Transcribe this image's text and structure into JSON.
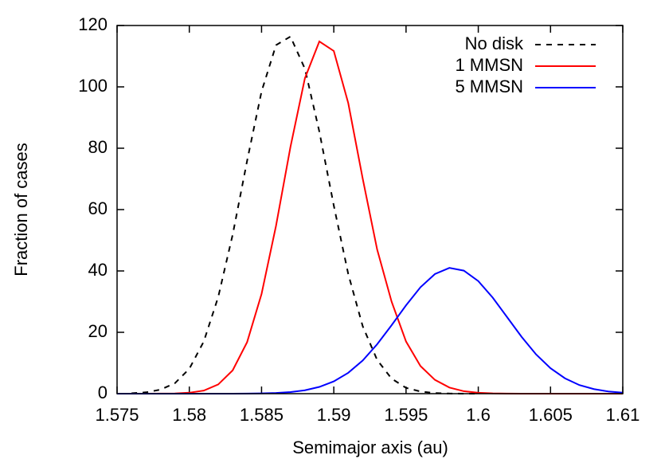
{
  "chart_data": {
    "type": "line",
    "x_label": "Semimajor axis (au)",
    "y_label": "Fraction of cases",
    "x": [
      1.575,
      1.576,
      1.577,
      1.578,
      1.579,
      1.58,
      1.581,
      1.582,
      1.583,
      1.584,
      1.585,
      1.586,
      1.587,
      1.588,
      1.589,
      1.59,
      1.591,
      1.592,
      1.593,
      1.594,
      1.595,
      1.596,
      1.597,
      1.598,
      1.599,
      1.6,
      1.601,
      1.602,
      1.603,
      1.604,
      1.605,
      1.606,
      1.607,
      1.608,
      1.609,
      1.61
    ],
    "series": [
      {
        "name": "No disk",
        "color": "#000000",
        "style": "dashed",
        "values": [
          null,
          0.13,
          0.44,
          1.3,
          3.4,
          8.1,
          17.0,
          31.5,
          51.8,
          75.9,
          98.5,
          113.6,
          116.4,
          105.9,
          85.4,
          61.3,
          39.0,
          22.0,
          11.0,
          4.9,
          1.9,
          0.7,
          0.2,
          0.05,
          0.01,
          0,
          null,
          null,
          null,
          null,
          null,
          null,
          null,
          null,
          null,
          null
        ]
      },
      {
        "name": "1 MMSN",
        "color": "#ff0000",
        "style": "solid",
        "values": [
          0,
          0,
          0,
          0.02,
          0.08,
          0.31,
          1.0,
          3.0,
          7.6,
          16.8,
          32.5,
          54.7,
          80.4,
          102.8,
          114.8,
          111.7,
          94.7,
          70.1,
          47.0,
          30.0,
          17.0,
          9.0,
          4.5,
          2.0,
          0.8,
          0.3,
          0.1,
          0.03,
          0,
          0,
          0,
          0,
          0,
          0,
          0,
          0
        ]
      },
      {
        "name": "5 MMSN",
        "color": "#0000ff",
        "style": "solid",
        "values": [
          0,
          0,
          0,
          0,
          0,
          0,
          0,
          0,
          0.01,
          0.04,
          0.1,
          0.24,
          0.53,
          1.1,
          2.2,
          4.0,
          6.8,
          10.8,
          16.1,
          22.3,
          28.8,
          34.7,
          39.0,
          41.0,
          40.1,
          36.7,
          31.3,
          24.9,
          18.5,
          12.8,
          8.3,
          5.0,
          2.8,
          1.5,
          0.72,
          0.33
        ]
      }
    ],
    "xlim": [
      1.575,
      1.61
    ],
    "xticks": [
      1.575,
      1.58,
      1.585,
      1.59,
      1.595,
      1.6,
      1.605,
      1.61
    ],
    "ylim": [
      0,
      120
    ],
    "yticks": [
      0,
      20,
      40,
      60,
      80,
      100,
      120
    ],
    "legend": "top-right"
  }
}
